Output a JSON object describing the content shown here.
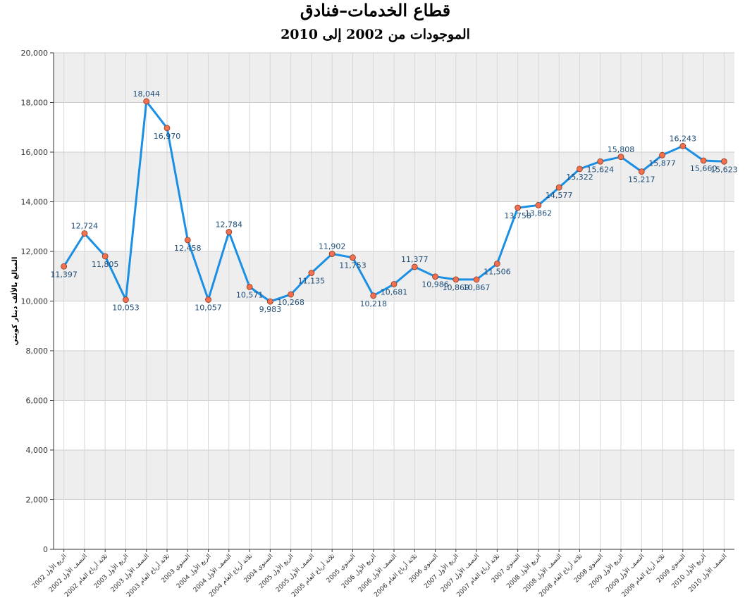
{
  "title": "قطاع الخدمات–فنادق",
  "subtitle": "الموجودات من 2002 إلى 2010",
  "chart_data": {
    "type": "line",
    "title": "قطاع الخدمات–فنادق",
    "subtitle": "الموجودات من 2002 إلى 2010",
    "ylabel": "المبالغ بالألف دينار كويتي",
    "xlabel": "",
    "ylim": [
      0,
      20000
    ],
    "yticks": [
      "0",
      "2,000",
      "4,000",
      "6,000",
      "8,000",
      "10,000",
      "12,000",
      "14,000",
      "16,000",
      "18,000",
      "20,000"
    ],
    "grid": true,
    "categories": [
      "الربع الأول 2002",
      "النصف الأول 2002",
      "ثلاثة أرباع العام 2002",
      "الربع الأول 2003",
      "النصف الأول 2003",
      "ثلاثة أرباع العام 2003",
      "السنوي 2003",
      "الربع الأول 2004",
      "النصف الأول 2004",
      "ثلاثة أرباع العام 2004",
      "السنوي 2004",
      "الربع الأول 2005",
      "النصف الأول 2005",
      "ثلاثة أرباع العام 2005",
      "السنوي 2005",
      "الربع الأول 2006",
      "النصف الأول 2006",
      "ثلاثة أرباع العام 2006",
      "السنوي 2006",
      "الربع الأول 2007",
      "النصف الأول 2007",
      "ثلاثة أرباع العام 2007",
      "السنوي 2007",
      "الربع الأول 2008",
      "النصف الأول 2008",
      "ثلاثة أرباع العام 2008",
      "السنوي 2008",
      "الربع الأول 2009",
      "النصف الأول 2009",
      "ثلاثة أرباع العام 2009",
      "السنوي 2009",
      "الربع الأول 2010",
      "النصف الأول 2010"
    ],
    "values": [
      11397,
      12724,
      11805,
      10053,
      18044,
      16970,
      12458,
      10057,
      12784,
      10571,
      9983,
      10268,
      11135,
      11902,
      11753,
      10218,
      10681,
      11377,
      10986,
      10869,
      10867,
      11506,
      13758,
      13862,
      14577,
      15322,
      15624,
      15808,
      15217,
      15877,
      16243,
      15660,
      15623
    ],
    "labels": [
      "11,397",
      "12,724",
      "11,805",
      "10,053",
      "18,044",
      "16,970",
      "12,458",
      "10,057",
      "12,784",
      "10,571",
      "9,983",
      "10,268",
      "11,135",
      "11,902",
      "11,753",
      "10,218",
      "10,681",
      "11,377",
      "10,986",
      "10,869",
      "10,867",
      "11,506",
      "13,758",
      "13,862",
      "14,577",
      "15,322",
      "15,624",
      "15,808",
      "15,217",
      "15,877",
      "16,243",
      "15,660",
      "15,623"
    ],
    "line_color": "#1a8fe3",
    "marker_color": "#f2704f",
    "band_color": "#eeeeee"
  }
}
